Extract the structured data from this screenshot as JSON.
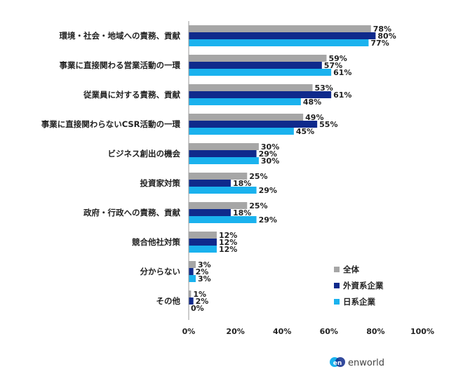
{
  "chart_data": {
    "type": "bar",
    "orientation": "horizontal",
    "categories": [
      "環境・社会・地域への責務、貢献",
      "事業に直接関わる営業活動の一環",
      "従業員に対する責務、貢献",
      "事業に直接関わらないCSR活動の一環",
      "ビジネス創出の機会",
      "投資家対策",
      "政府・行政への責務、貢献",
      "競合他社対策",
      "分からない",
      "その他"
    ],
    "series": [
      {
        "name": "全体",
        "color": "#a6a6a6",
        "values": [
          78,
          59,
          53,
          49,
          30,
          25,
          25,
          12,
          3,
          1
        ]
      },
      {
        "name": "外資系企業",
        "color": "#0f2a8c",
        "values": [
          80,
          57,
          61,
          55,
          29,
          18,
          18,
          12,
          2,
          2
        ]
      },
      {
        "name": "日系企業",
        "color": "#1ab2ee",
        "values": [
          77,
          61,
          48,
          45,
          30,
          29,
          29,
          12,
          3,
          0
        ]
      }
    ],
    "xlim": [
      0,
      100
    ],
    "xticks": [
      0,
      20,
      40,
      60,
      80,
      100
    ],
    "tick_suffix": "%",
    "value_suffix": "%",
    "legend_position": "bottom-right",
    "grid": false
  },
  "branding": {
    "logo_mark": "en",
    "logo_text": "enworld"
  }
}
